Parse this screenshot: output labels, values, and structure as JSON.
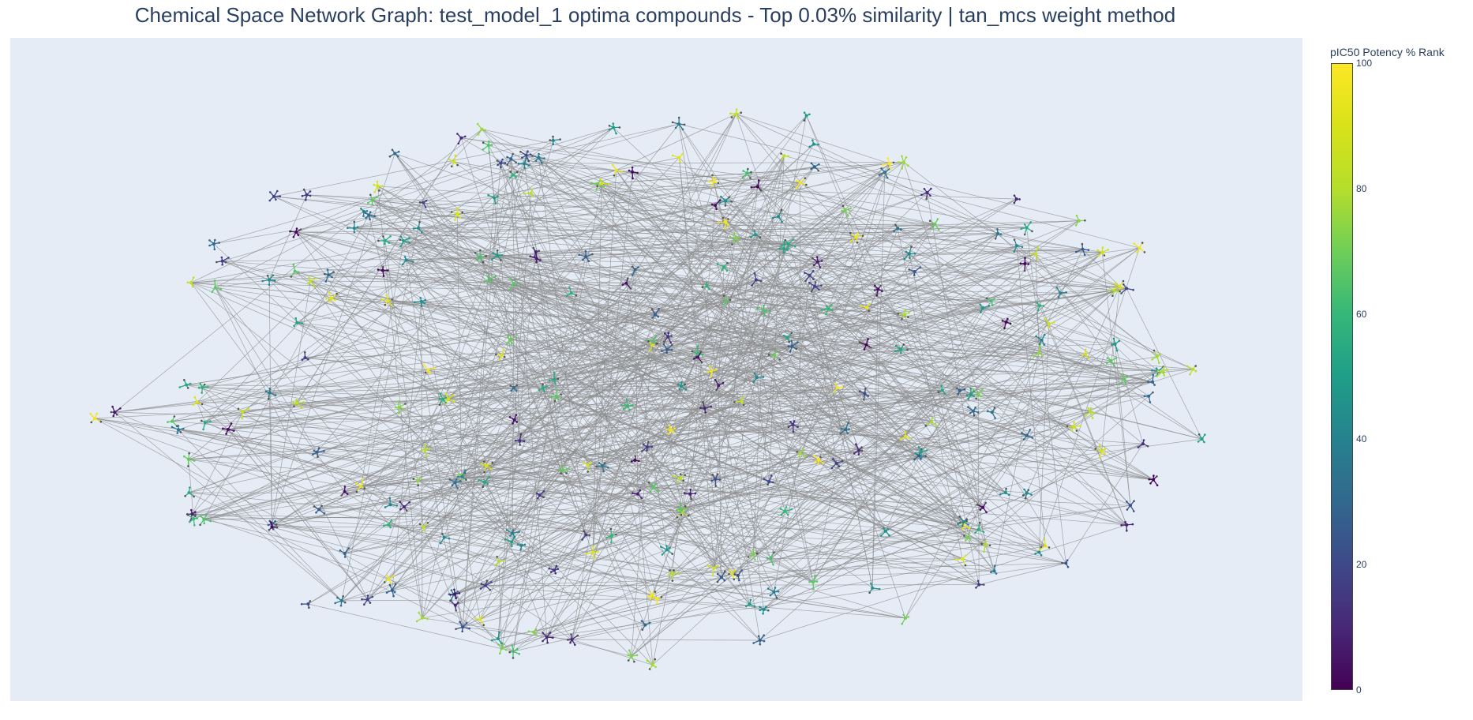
{
  "title": "Chemical Space Network Graph: test_model_1 optima compounds - Top 0.03% similarity | tan_mcs weight method",
  "colorbar": {
    "title": "pIC50 Potency % Rank",
    "ticks": [
      "0",
      "20",
      "40",
      "60",
      "80",
      "100"
    ],
    "range": [
      0,
      100
    ],
    "colorscale": "viridis"
  },
  "graph": {
    "node_count": 300,
    "edge_color": "#8c8c8c",
    "background": "#e5ecf6",
    "node_encoding": "small molecule structure glyph colored by pIC50 Potency % Rank"
  }
}
